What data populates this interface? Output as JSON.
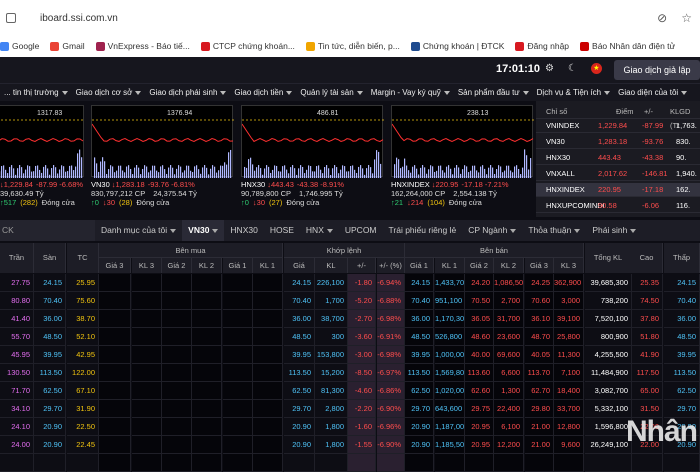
{
  "browser": {
    "url": "iboard.ssi.com.vn",
    "bookmarks": [
      {
        "label": "Google",
        "color": "#4285f4"
      },
      {
        "label": "Gmail",
        "color": "#ea4335"
      },
      {
        "label": "VnExpress - Báo tiế...",
        "color": "#9f224e"
      },
      {
        "label": "CTCP chứng khoán...",
        "color": "#d71920"
      },
      {
        "label": "Tin tức, diễn biến, p...",
        "color": "#f0a500"
      },
      {
        "label": "Chứng khoán | ĐTCK",
        "color": "#1e4b8f"
      },
      {
        "label": "Đăng nhập",
        "color": "#d71920"
      },
      {
        "label": "Báo Nhân dân điện tử",
        "color": "#c00"
      }
    ]
  },
  "appbar": {
    "time": "17:01:10",
    "trial_button": "Giao dịch giả lập"
  },
  "menu": [
    "... tin thị trường",
    "Giao dịch cơ sở",
    "Giao dịch phái sinh",
    "Giao dịch tiền",
    "Quản lý tài sản",
    "Margin - Vay ký quỹ",
    "Sản phẩm đầu tư",
    "Dịch vụ & Tiện ích",
    "Giao diện của tôi"
  ],
  "charts": [
    {
      "peak": "1317.83",
      "line1": {
        "a": "↓1,229.84",
        "b": "-87.99 -6.68%"
      },
      "line2": {
        "a": "39,630.49 Tỷ",
        "b": ""
      },
      "line3": {
        "a": "↑517",
        "b": "(282)",
        "c": "Đóng cửa"
      }
    },
    {
      "peak": "1376.94",
      "name": "VN30",
      "line1": {
        "a": "↓1,283.18",
        "b": "-93.76 -6.81%"
      },
      "line2": {
        "a": "830,797,212 CP",
        "b": "24,375.54 Tỷ"
      },
      "line3": {
        "a": "↑0",
        "b": "↓30",
        "c": "(28)",
        "d": "Đóng cửa"
      }
    },
    {
      "peak": "486.81",
      "name": "HNX30",
      "line1": {
        "a": "↓443.43",
        "b": "-43.38 -8.91%"
      },
      "line2": {
        "a": "90,789,800 CP",
        "b": "1,746.995 Tỷ"
      },
      "line3": {
        "a": "↑0",
        "b": "↓30",
        "c": "(27)",
        "d": "Đóng cửa"
      }
    },
    {
      "peak": "238.13",
      "name": "HNXINDEX",
      "line1": {
        "a": "↓220.95",
        "b": "-17.18 -7.21%"
      },
      "line2": {
        "a": "162,264,000 CP",
        "b": "2,554.138 Tỷ"
      },
      "line3": {
        "a": "↑21",
        "b": "↓214",
        "c": "(104)",
        "d": "Đóng cửa"
      }
    }
  ],
  "index_table": {
    "headers": [
      "Chỉ số",
      "Điểm",
      "+/-",
      "KLGD (Tr"
    ],
    "rows": [
      {
        "name": "VNINDEX",
        "pt": "1,229.84",
        "chg": "-87.99",
        "vol": "1,763."
      },
      {
        "name": "VN30",
        "pt": "1,283.18",
        "chg": "-93.76",
        "vol": "830."
      },
      {
        "name": "HNX30",
        "pt": "443.43",
        "chg": "-43.38",
        "vol": "90."
      },
      {
        "name": "VNXALL",
        "pt": "2,017.62",
        "chg": "-146.81",
        "vol": "1,940."
      },
      {
        "name": "HNXINDEX",
        "pt": "220.95",
        "chg": "-17.18",
        "vol": "162."
      },
      {
        "name": "HNXUPCOMINDI",
        "pt": "90.58",
        "chg": "-6.06",
        "vol": "116."
      }
    ]
  },
  "tabs": {
    "search": "CK",
    "items": [
      "Danh mục của tôi",
      "VN30",
      "HNX30",
      "HOSE",
      "HNX",
      "UPCOM",
      "Trái phiếu riêng lẻ",
      "CP Ngành",
      "Thỏa thuận",
      "Phái sinh"
    ]
  },
  "board": {
    "group_headers": {
      "buy": "Bên mua",
      "match": "Khớp lệnh",
      "sell": "Bên bán"
    },
    "col_headers": [
      "Trần",
      "Sàn",
      "TC",
      "Giá 3",
      "KL 3",
      "Giá 2",
      "KL 2",
      "Giá 1",
      "KL 1",
      "Giá",
      "KL",
      "+/-",
      "+/- (%)",
      "Giá 1",
      "KL 1",
      "Giá 2",
      "KL 2",
      "Giá 3",
      "KL 3",
      "Tổng KL",
      "Cao",
      "Thấp"
    ],
    "rows": [
      [
        "27.75",
        "24.15",
        "25.95",
        "24.15",
        "226,100",
        "-1.80",
        "-6.94%",
        "24.15",
        "1,433,700",
        "24.20",
        "1,086,500",
        "24.25",
        "362,900",
        "39,685,300",
        "25.35",
        "24.15"
      ],
      [
        "80.80",
        "70.40",
        "75.60",
        "70.40",
        "1,700",
        "-5.20",
        "-6.88%",
        "70.40",
        "951,100",
        "70.50",
        "2,700",
        "70.60",
        "3,000",
        "738,200",
        "74.50",
        "70.40"
      ],
      [
        "41.40",
        "36.00",
        "38.70",
        "36.00",
        "38,700",
        "-2.70",
        "-6.98%",
        "36.00",
        "1,170,300",
        "36.05",
        "31,700",
        "36.10",
        "39,100",
        "7,520,100",
        "37.80",
        "36.00"
      ],
      [
        "55.70",
        "48.50",
        "52.10",
        "48.50",
        "300",
        "-3.60",
        "-6.91%",
        "48.50",
        "526,800",
        "48.60",
        "23,600",
        "48.70",
        "25,800",
        "800,900",
        "51.80",
        "48.50"
      ],
      [
        "45.95",
        "39.95",
        "42.95",
        "39.95",
        "153,800",
        "-3.00",
        "-6.98%",
        "39.95",
        "1,000,000",
        "40.00",
        "69,600",
        "40.05",
        "11,300",
        "4,255,500",
        "41.90",
        "39.95"
      ],
      [
        "130.50",
        "113.50",
        "122.00",
        "113.50",
        "15,200",
        "-8.50",
        "-6.97%",
        "113.50",
        "1,569,800",
        "113.60",
        "6,600",
        "113.70",
        "7,100",
        "11,484,900",
        "117.50",
        "113.50"
      ],
      [
        "71.70",
        "62.50",
        "67.10",
        "62.50",
        "81,300",
        "-4.60",
        "-6.86%",
        "62.50",
        "1,020,000",
        "62.60",
        "1,300",
        "62.70",
        "18,400",
        "3,082,700",
        "65.00",
        "62.50"
      ],
      [
        "34.10",
        "29.70",
        "31.90",
        "29.70",
        "2,800",
        "-2.20",
        "-6.90%",
        "29.70",
        "643,600",
        "29.75",
        "22,400",
        "29.80",
        "33,700",
        "5,332,100",
        "31.50",
        "29.70"
      ],
      [
        "24.10",
        "20.90",
        "22.50",
        "20.90",
        "1,800",
        "-1.60",
        "-6.96%",
        "20.90",
        "1,187,000",
        "20.95",
        "6,100",
        "21.00",
        "12,800",
        "1,596,800",
        "22.00",
        "20.90"
      ],
      [
        "24.00",
        "20.90",
        "22.45",
        "20.90",
        "1,800",
        "-1.55",
        "-6.90%",
        "20.90",
        "1,185,500",
        "20.95",
        "12,200",
        "21.00",
        "9,600",
        "26,249,100",
        "22.00",
        "20.90"
      ],
      [
        "",
        "",
        "",
        "",
        "",
        "",
        "",
        "",
        "",
        "",
        "",
        "",
        "",
        "",
        "",
        ""
      ]
    ]
  },
  "watermark": "Nhân",
  "colors": {
    "ceiling": "#e36ef0",
    "floor": "#4fc3f7",
    "ref": "#f1c40f",
    "down": "#ff4d4d",
    "up": "#2ecc71",
    "white": "#ffffff"
  }
}
